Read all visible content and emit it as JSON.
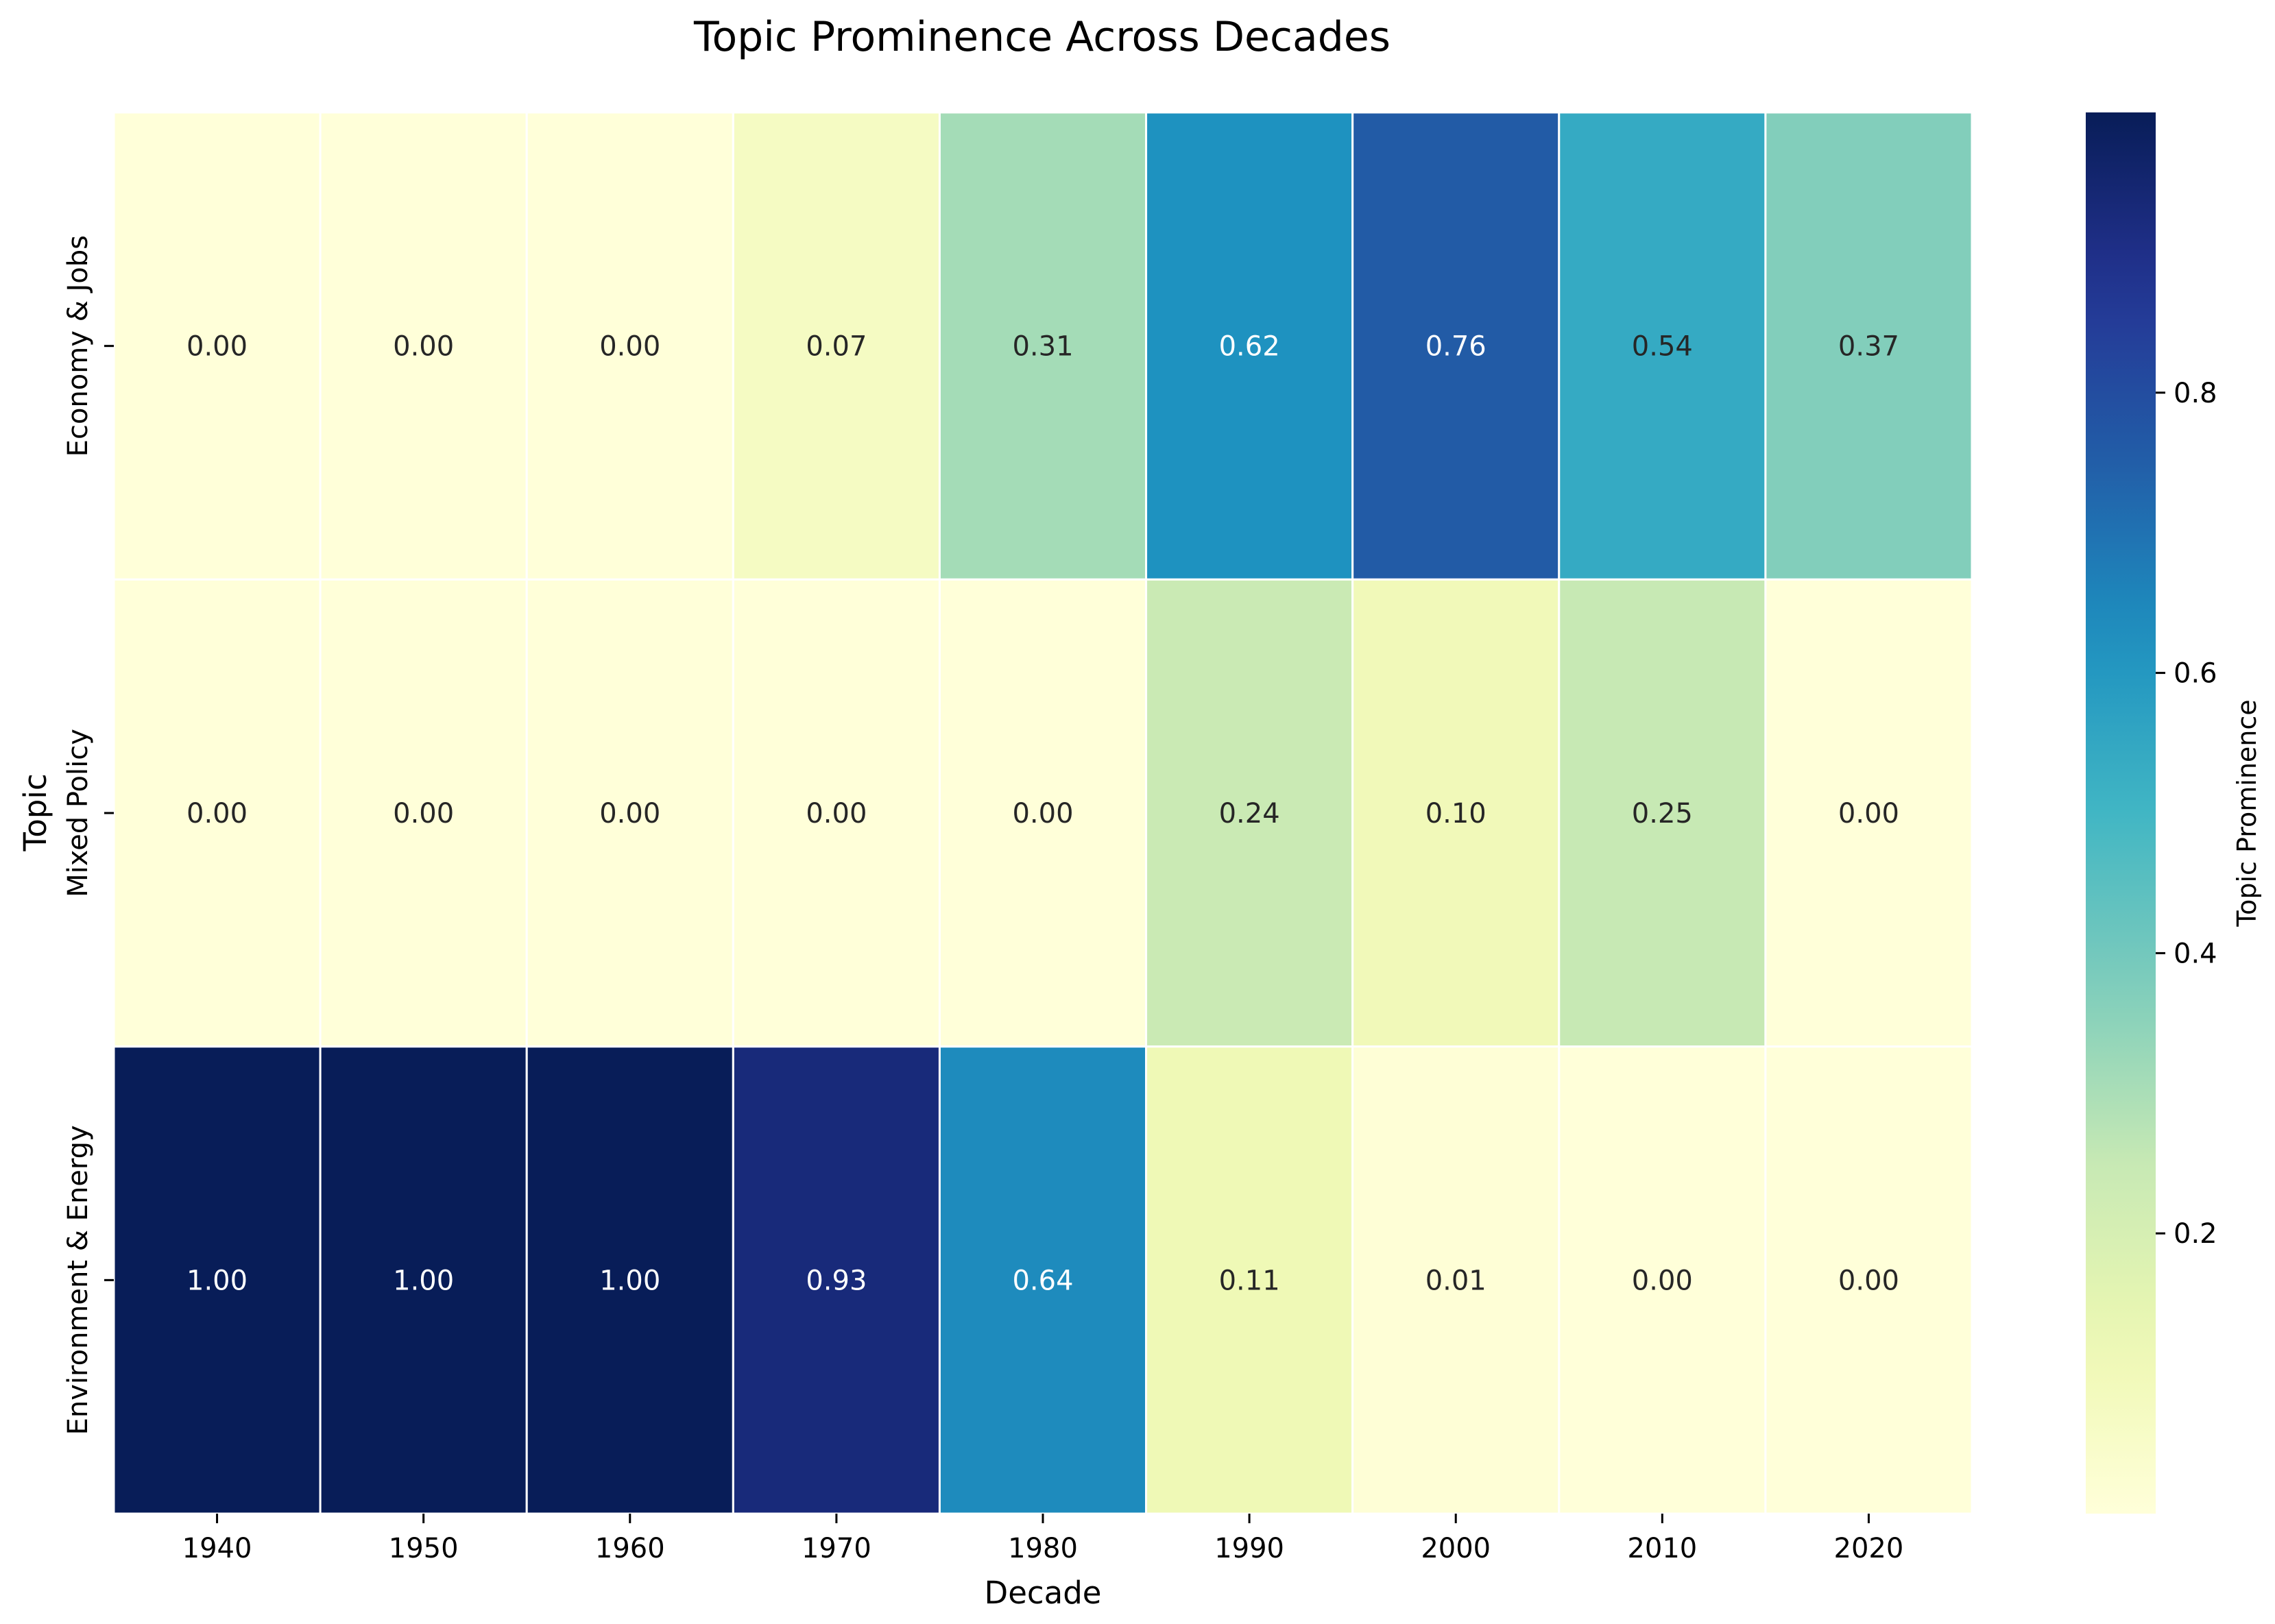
{
  "chart_data": {
    "type": "heatmap",
    "title": "Topic Prominence Across Decades",
    "xlabel": "Decade",
    "ylabel": "Topic",
    "x_categories": [
      "1940",
      "1950",
      "1960",
      "1970",
      "1980",
      "1990",
      "2000",
      "2010",
      "2020"
    ],
    "y_categories": [
      "Economy & Jobs",
      "Mixed Policy",
      "Environment & Energy"
    ],
    "values": [
      [
        0.0,
        0.0,
        0.0,
        0.07,
        0.31,
        0.62,
        0.76,
        0.54,
        0.37
      ],
      [
        0.0,
        0.0,
        0.0,
        0.0,
        0.0,
        0.24,
        0.1,
        0.25,
        0.0
      ],
      [
        1.0,
        1.0,
        1.0,
        0.93,
        0.64,
        0.11,
        0.01,
        0.0,
        0.0
      ]
    ],
    "value_format_decimals": 2,
    "colormap": "YlGnBu",
    "colorbar": {
      "label": "Topic Prominence",
      "range": [
        0.0,
        1.0
      ],
      "ticks": [
        0.2,
        0.4,
        0.6,
        0.8
      ],
      "tick_labels": [
        "0.2",
        "0.4",
        "0.6",
        "0.8"
      ]
    },
    "grid_line_color": "#ffffff"
  }
}
